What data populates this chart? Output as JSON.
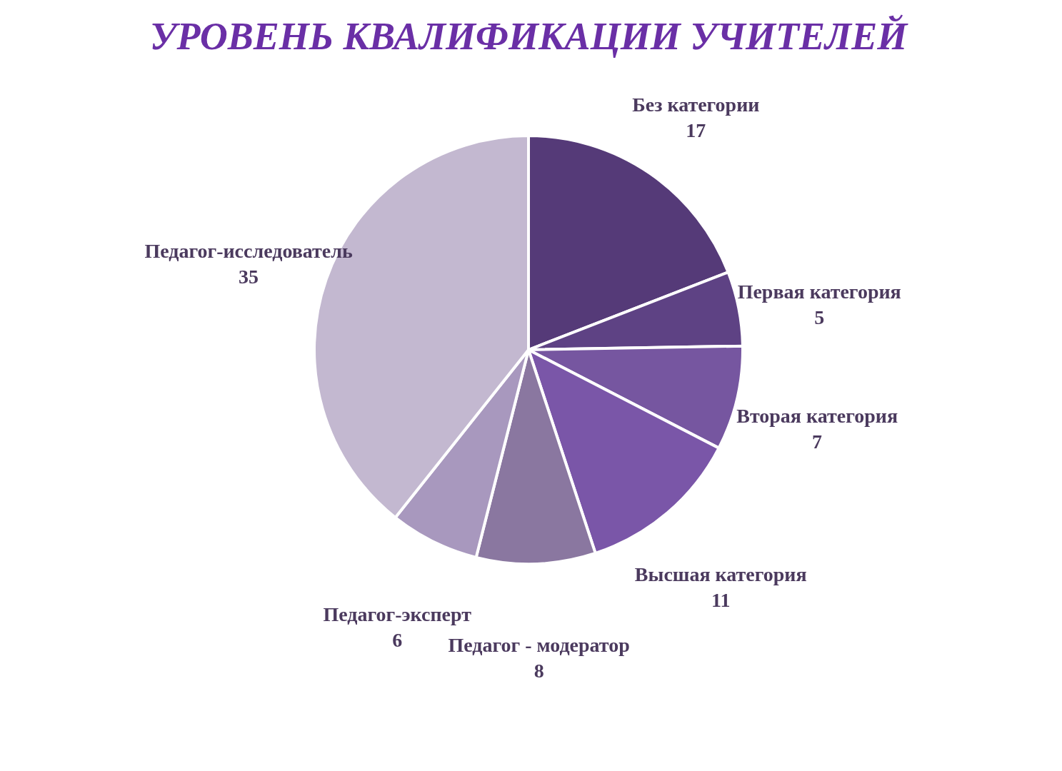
{
  "chart_data": {
    "type": "pie",
    "title": "УРОВЕНЬ КВАЛИФИКАЦИИ УЧИТЕЛЕЙ",
    "categories": [
      "Без категории",
      "Первая категория",
      "Вторая категория",
      "Высшая категория",
      "Педагог - модератор",
      "Педагог-эксперт",
      "Педагог-исследователь"
    ],
    "values": [
      17,
      5,
      7,
      11,
      8,
      6,
      35
    ],
    "colors": [
      "#553a78",
      "#5e4284",
      "#7656a0",
      "#7a56a8",
      "#8a77a0",
      "#a898be",
      "#c3b8d0"
    ],
    "data_labels": true,
    "legend": false
  }
}
